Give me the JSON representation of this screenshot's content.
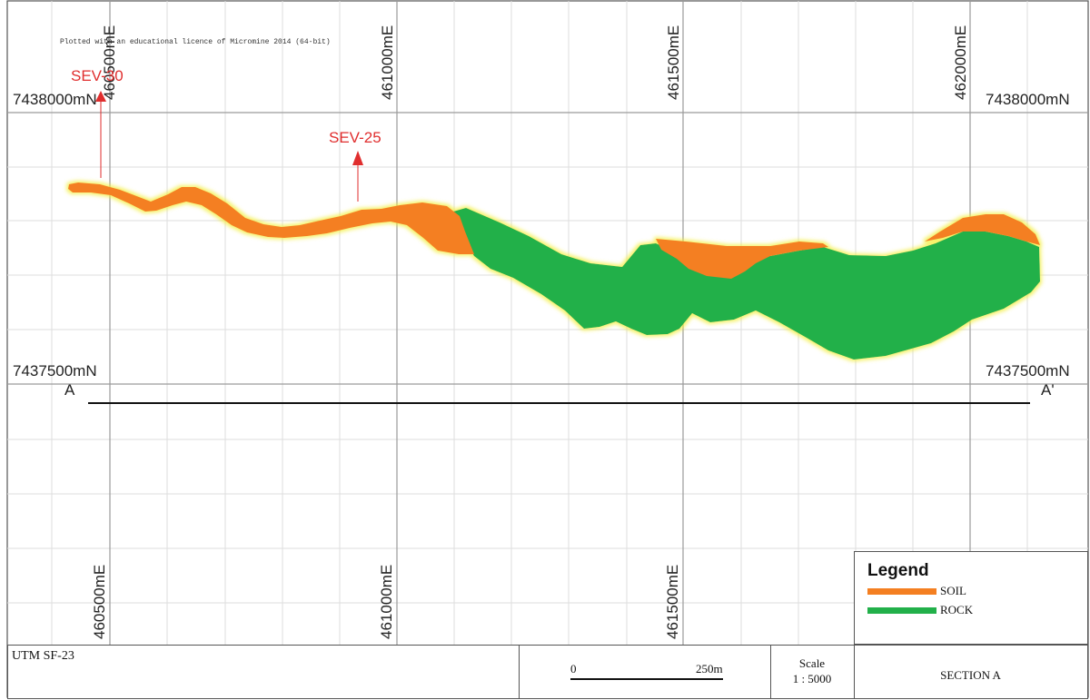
{
  "notice": "Plotted with an educational licence of Micromine 2014 (64-bit)",
  "easting_labels": [
    "460500mE",
    "461000mE",
    "461500mE",
    "462000mE"
  ],
  "northing_labels": {
    "top_left": "7438000mN",
    "top_right": "7438000mN",
    "bottom_left": "7437500mN",
    "bottom_right": "7437500mN"
  },
  "sev_labels": [
    "SEV-30",
    "SEV-25"
  ],
  "section_line": {
    "start": "A",
    "end": "A'"
  },
  "legend": {
    "title": "Legend",
    "items": [
      {
        "label": "SOIL",
        "color": "#f47f21"
      },
      {
        "label": "ROCK",
        "color": "#22b04a"
      }
    ]
  },
  "title_block": {
    "projection": "UTM SF-23",
    "scalebar_start": "0",
    "scalebar_end": "250m",
    "scale_title": "Scale",
    "scale_value": "1 : 5000",
    "section_name": "SECTION A"
  },
  "colors": {
    "soil": "#f47f21",
    "rock": "#22b04a",
    "halo": "#f2ee3a",
    "annotation": "#e02e2e",
    "grid": "#9a9a9a",
    "minor_grid": "#dddddd"
  }
}
